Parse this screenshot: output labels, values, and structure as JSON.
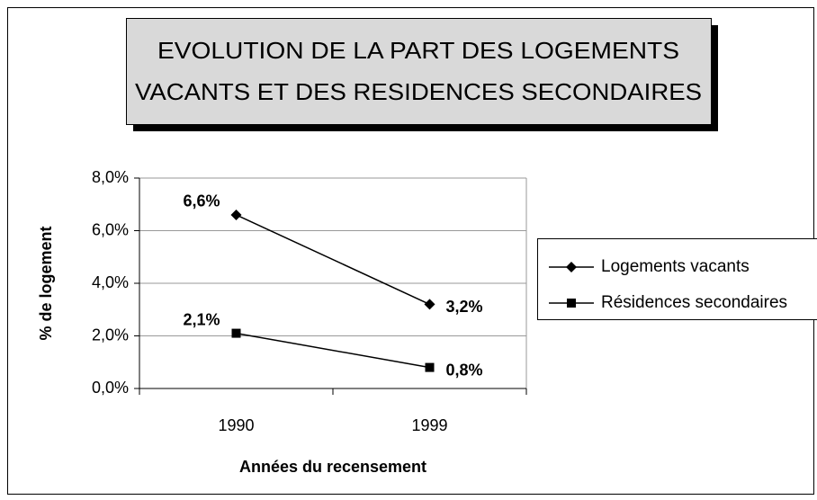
{
  "chart_data": {
    "type": "line",
    "title": [
      "EVOLUTION DE LA PART DES LOGEMENTS",
      "VACANTS ET DES RESIDENCES SECONDAIRES"
    ],
    "x_label": "Années du recensement",
    "y_label": "% de logement",
    "categories": [
      "1990",
      "1999"
    ],
    "series": [
      {
        "name": "Logements vacants",
        "color": "#000000",
        "marker": "diamond",
        "values": [
          6.6,
          3.2
        ],
        "value_labels": [
          "6,6%",
          "3,2%"
        ]
      },
      {
        "name": "Résidences secondaires",
        "color": "#000000",
        "marker": "square",
        "values": [
          2.1,
          0.8
        ],
        "value_labels": [
          "2,1%",
          "0,8%"
        ]
      }
    ],
    "ylim": [
      0,
      8
    ],
    "yticks": [
      {
        "value": 0,
        "label": "0,0%"
      },
      {
        "value": 2,
        "label": "2,0%"
      },
      {
        "value": 4,
        "label": "4,0%"
      },
      {
        "value": 6,
        "label": "6,0%"
      },
      {
        "value": 8,
        "label": "8,0%"
      }
    ],
    "grid": true,
    "legend": "right"
  }
}
